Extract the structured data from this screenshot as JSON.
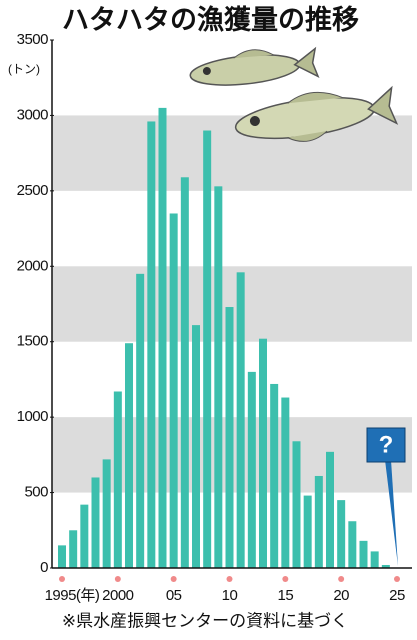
{
  "chart_data": {
    "type": "bar",
    "title": "ハタハタの漁獲量の推移",
    "y_unit": "(トン)",
    "source": "※県水産振興センターの資料に基づく",
    "annotation": "?",
    "categories": [
      "1995(年)",
      null,
      null,
      null,
      null,
      "2000",
      null,
      null,
      null,
      null,
      "05",
      null,
      null,
      null,
      null,
      "10",
      null,
      null,
      null,
      null,
      "15",
      null,
      null,
      null,
      null,
      "20",
      null,
      null,
      null,
      null,
      "25"
    ],
    "values": [
      150,
      250,
      420,
      600,
      720,
      1170,
      1490,
      1950,
      2960,
      3050,
      2350,
      2590,
      1610,
      2900,
      2530,
      1730,
      1960,
      1300,
      1520,
      1220,
      1130,
      840,
      480,
      610,
      770,
      450,
      310,
      180,
      110,
      20,
      null
    ],
    "color": "#3cbfad",
    "ylim": [
      0,
      3500
    ],
    "yticks": [
      0,
      500,
      1000,
      1500,
      2000,
      2500,
      3000,
      3500
    ],
    "grid": true
  }
}
